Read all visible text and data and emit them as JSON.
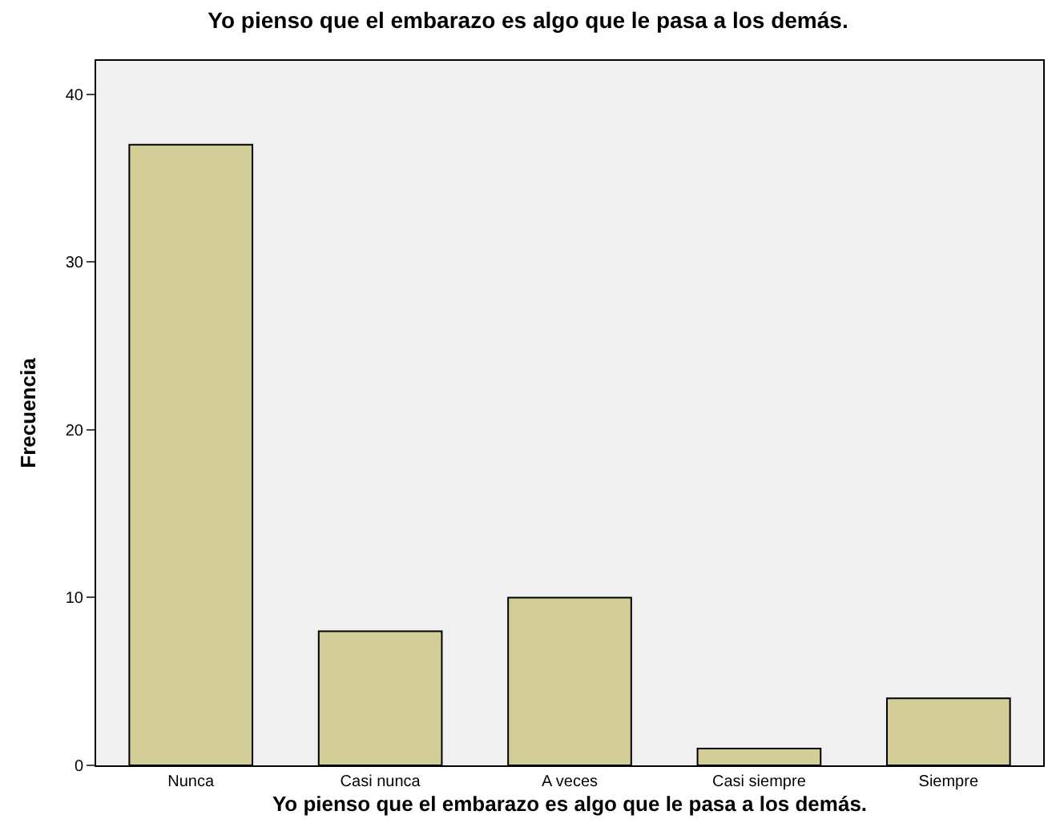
{
  "chart_data": {
    "type": "bar",
    "title": "Yo pienso que el embarazo es algo que le pasa a los demás.",
    "xlabel": "Yo pienso que el embarazo es algo que le pasa a los demás.",
    "ylabel": "Frecuencia",
    "categories": [
      "Nunca",
      "Casi nunca",
      "A veces",
      "Casi siempre",
      "Siempre"
    ],
    "values": [
      37,
      8,
      10,
      1,
      4
    ],
    "color": "#d3ce97",
    "ylim": [
      0,
      42
    ],
    "yticks": [
      0,
      10,
      20,
      30,
      40
    ],
    "grid": false
  }
}
